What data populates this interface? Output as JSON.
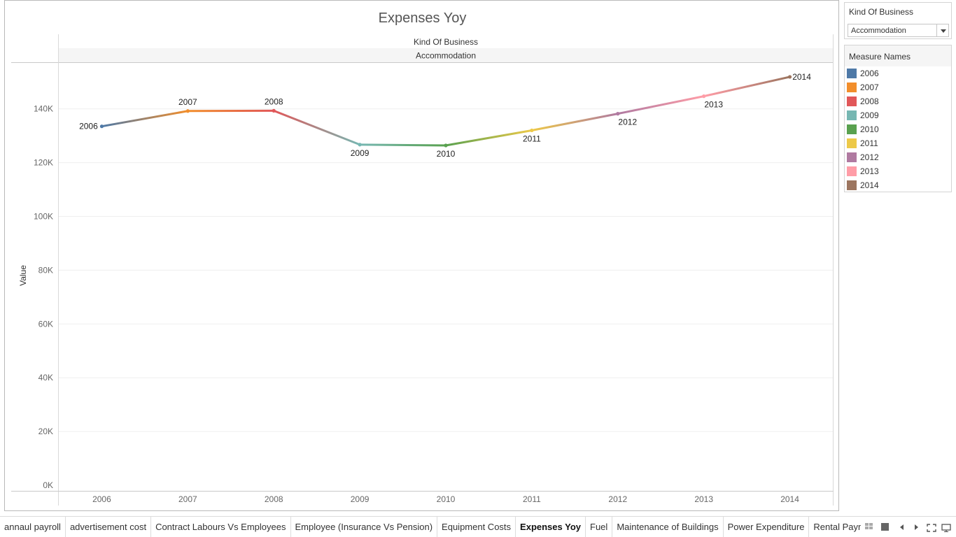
{
  "dashboard": {
    "title": "Expenses Yoy"
  },
  "header": {
    "field_label": "Kind Of Business",
    "value": "Accommodation"
  },
  "filter": {
    "title": "Kind Of Business",
    "value": "Accommodation"
  },
  "legend": {
    "title": "Measure Names",
    "items": [
      {
        "label": "2006",
        "color": "#4e79a7"
      },
      {
        "label": "2007",
        "color": "#f28e2b"
      },
      {
        "label": "2008",
        "color": "#e15759"
      },
      {
        "label": "2009",
        "color": "#76b7b2"
      },
      {
        "label": "2010",
        "color": "#59a14f"
      },
      {
        "label": "2011",
        "color": "#edc948"
      },
      {
        "label": "2012",
        "color": "#b07aa1"
      },
      {
        "label": "2013",
        "color": "#ff9da7"
      },
      {
        "label": "2014",
        "color": "#9c755f"
      }
    ]
  },
  "chart_data": {
    "type": "line",
    "title": "Expenses Yoy",
    "ylabel": "Value",
    "xlabel": "",
    "categories": [
      "2006",
      "2007",
      "2008",
      "2009",
      "2010",
      "2011",
      "2012",
      "2013",
      "2014"
    ],
    "values": [
      133500,
      139200,
      139300,
      126700,
      126400,
      132000,
      138200,
      144700,
      151900
    ],
    "point_labels": [
      "2006",
      "2007",
      "2008",
      "2009",
      "2010",
      "2011",
      "2012",
      "2013",
      "2014"
    ],
    "yticks": [
      "0K",
      "20K",
      "40K",
      "60K",
      "80K",
      "100K",
      "120K",
      "140K"
    ],
    "ylim": [
      0,
      160000
    ],
    "grid": true,
    "legend": "right",
    "colors": [
      "#4e79a7",
      "#f28e2b",
      "#e15759",
      "#76b7b2",
      "#59a14f",
      "#edc948",
      "#b07aa1",
      "#ff9da7",
      "#9c755f"
    ]
  },
  "tabs": [
    {
      "label": "annaul payroll",
      "active": false
    },
    {
      "label": "advertisement cost",
      "active": false
    },
    {
      "label": "Contract Labours Vs Employees",
      "active": false
    },
    {
      "label": "Employee (Insurance Vs Pension)",
      "active": false
    },
    {
      "label": "Equipment Costs",
      "active": false
    },
    {
      "label": "Expenses Yoy",
      "active": true
    },
    {
      "label": "Fuel",
      "active": false
    },
    {
      "label": "Maintenance of Buildings",
      "active": false
    },
    {
      "label": "Power Expenditure",
      "active": false
    },
    {
      "label": "Rental Payments",
      "active": false
    }
  ]
}
